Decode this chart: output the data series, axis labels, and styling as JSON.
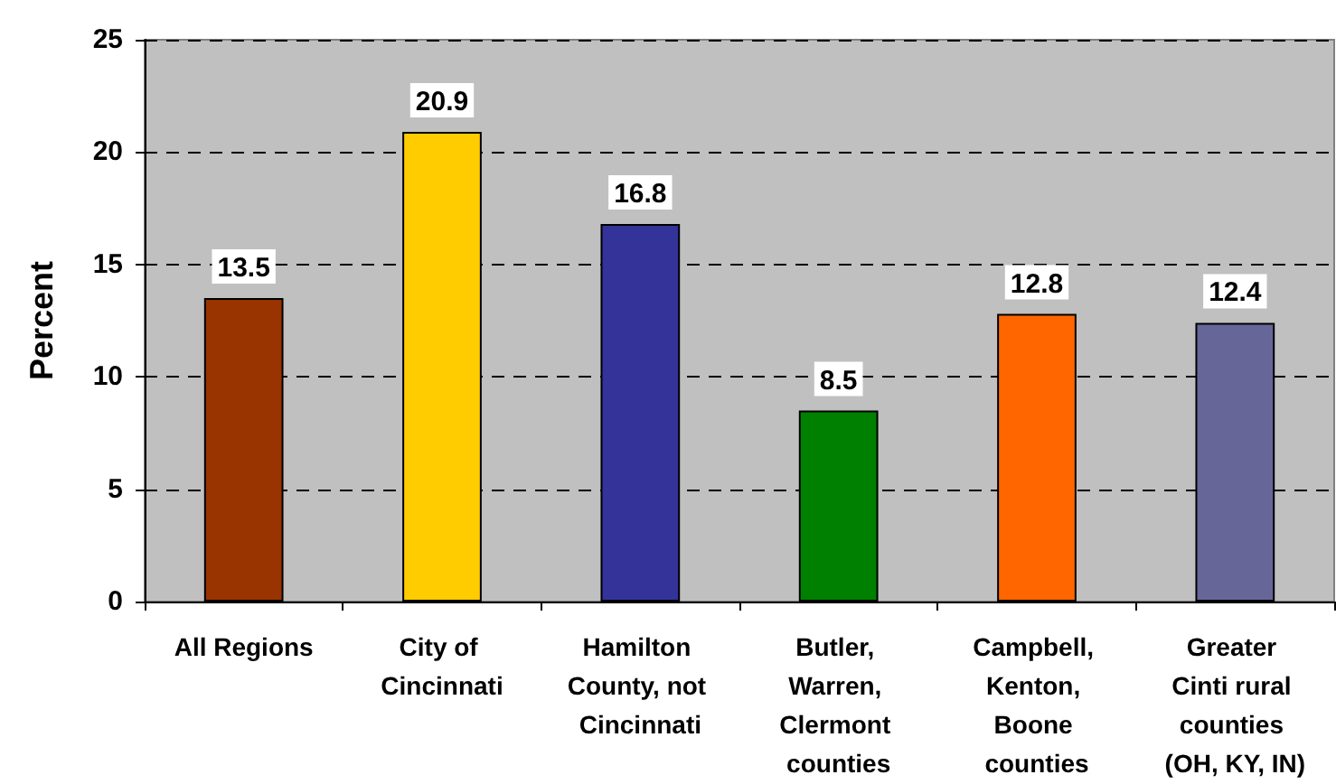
{
  "chart_data": {
    "type": "bar",
    "ylabel": "Percent",
    "categories": [
      "All Regions",
      "City of Cincinnati",
      "Hamilton County, not Cincinnati",
      "Butler, Warren, Clermont counties",
      "Campbell, Kenton, Boone counties",
      "Greater Cinti rural counties (OH, KY, IN)"
    ],
    "values": [
      13.5,
      20.9,
      16.8,
      8.5,
      12.8,
      12.4
    ],
    "colors": [
      "#993300",
      "#ffcc00",
      "#333399",
      "#008000",
      "#ff6600",
      "#666699"
    ],
    "ylim": [
      0,
      25
    ],
    "yticks": [
      0,
      5,
      10,
      15,
      20,
      25
    ],
    "grid": "y",
    "data_labels": true
  }
}
